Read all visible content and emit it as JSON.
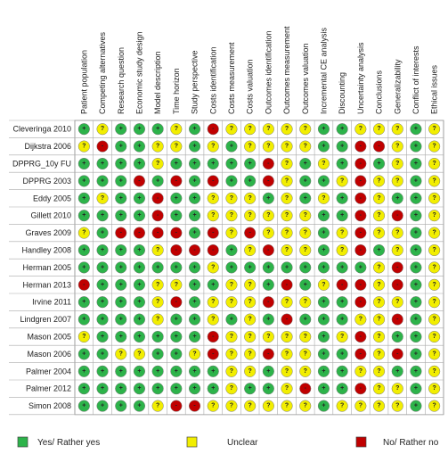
{
  "table": {
    "columns": [
      "Patient population",
      "Competing alternatives",
      "Research question",
      "Economic study design",
      "Model description",
      "Time horizon",
      "Study perspective",
      "Costs identification",
      "Costs measurement",
      "Costs valuation",
      "Outcomes identification",
      "Outcomes measurement",
      "Outcomes valuation",
      "Incremental CE analysis",
      "Discounting",
      "Uncertainty analysis",
      "Conclusions",
      "Generalizability",
      "Conflict of interests",
      "Ethical issues"
    ],
    "rows": [
      {
        "name": "Cleveringa 2010",
        "cells": [
          "+",
          "?",
          "+",
          "+",
          "+",
          "?",
          "+",
          "-",
          "?",
          "?",
          "?",
          "?",
          "?",
          "+",
          "+",
          "?",
          "?",
          "?",
          "+",
          "?"
        ]
      },
      {
        "name": "Dijkstra 2006",
        "cells": [
          "?",
          "-",
          "+",
          "+",
          "?",
          "?",
          "+",
          "?",
          "+",
          "?",
          "?",
          "?",
          "?",
          "+",
          "+",
          "-",
          "-",
          "?",
          "+",
          "?"
        ]
      },
      {
        "name": "DPPRG_10y FU",
        "cells": [
          "+",
          "+",
          "+",
          "+",
          "?",
          "+",
          "+",
          "+",
          "+",
          "+",
          "-",
          "?",
          "+",
          "?",
          "+",
          "-",
          "+",
          "?",
          "+",
          "?"
        ]
      },
      {
        "name": "DPPRG 2003",
        "cells": [
          "+",
          "+",
          "+",
          "-",
          "+",
          "-",
          "+",
          "-",
          "+",
          "+",
          "-",
          "?",
          "+",
          "+",
          "?",
          "-",
          "?",
          "?",
          "+",
          "?"
        ]
      },
      {
        "name": "Eddy 2005",
        "cells": [
          "+",
          "?",
          "+",
          "+",
          "-",
          "+",
          "+",
          "?",
          "?",
          "?",
          "+",
          "?",
          "+",
          "?",
          "+",
          "-",
          "?",
          "+",
          "+",
          "?"
        ]
      },
      {
        "name": "Gillett 2010",
        "cells": [
          "+",
          "+",
          "+",
          "+",
          "-",
          "+",
          "+",
          "?",
          "?",
          "?",
          "?",
          "?",
          "?",
          "+",
          "+",
          "-",
          "?",
          "-",
          "+",
          "?"
        ]
      },
      {
        "name": "Graves 2009",
        "cells": [
          "?",
          "+",
          "-",
          "-",
          "-",
          "-",
          "+",
          "-",
          "?",
          "-",
          "?",
          "?",
          "?",
          "+",
          "?",
          "-",
          "?",
          "?",
          "+",
          "?"
        ]
      },
      {
        "name": "Handley 2008",
        "cells": [
          "+",
          "+",
          "+",
          "+",
          "?",
          "-",
          "-",
          "-",
          "+",
          "?",
          "-",
          "?",
          "?",
          "+",
          "?",
          "-",
          "+",
          "?",
          "+",
          "?"
        ]
      },
      {
        "name": "Herman 2005",
        "cells": [
          "+",
          "+",
          "+",
          "+",
          "+",
          "+",
          "+",
          "?",
          "+",
          "+",
          "+",
          "+",
          "+",
          "+",
          "+",
          "+",
          "?",
          "-",
          "+",
          "?"
        ]
      },
      {
        "name": "Herman 2013",
        "cells": [
          "-",
          "+",
          "+",
          "+",
          "?",
          "?",
          "+",
          "+",
          "?",
          "?",
          "+",
          "-",
          "+",
          "?",
          "-",
          "-",
          "?",
          "-",
          "+",
          "?"
        ]
      },
      {
        "name": "Irvine 2011",
        "cells": [
          "+",
          "+",
          "+",
          "+",
          "?",
          "-",
          "+",
          "?",
          "?",
          "?",
          "-",
          "?",
          "?",
          "+",
          "+",
          "-",
          "?",
          "?",
          "+",
          "?"
        ]
      },
      {
        "name": "Lindgren 2007",
        "cells": [
          "+",
          "+",
          "+",
          "+",
          "?",
          "+",
          "+",
          "?",
          "+",
          "?",
          "+",
          "-",
          "+",
          "+",
          "+",
          "?",
          "?",
          "-",
          "+",
          "?"
        ]
      },
      {
        "name": "Mason 2005",
        "cells": [
          "?",
          "+",
          "+",
          "+",
          "+",
          "+",
          "+",
          "-",
          "?",
          "?",
          "?",
          "?",
          "?",
          "+",
          "?",
          "-",
          "?",
          "+",
          "+",
          "?"
        ]
      },
      {
        "name": "Mason 2006",
        "cells": [
          "+",
          "+",
          "?",
          "?",
          "+",
          "+",
          "?",
          "-",
          "?",
          "?",
          "-",
          "?",
          "?",
          "+",
          "+",
          "-",
          "?",
          "-",
          "+",
          "?"
        ]
      },
      {
        "name": "Palmer 2004",
        "cells": [
          "+",
          "+",
          "+",
          "+",
          "+",
          "+",
          "+",
          "+",
          "?",
          "?",
          "+",
          "?",
          "?",
          "+",
          "+",
          "?",
          "?",
          "+",
          "+",
          "?"
        ]
      },
      {
        "name": "Palmer 2012",
        "cells": [
          "+",
          "+",
          "+",
          "+",
          "+",
          "+",
          "+",
          "+",
          "?",
          "+",
          "+",
          "?",
          "-",
          "+",
          "+",
          "-",
          "?",
          "?",
          "+",
          "?"
        ]
      },
      {
        "name": "Simon 2008",
        "cells": [
          "+",
          "+",
          "+",
          "+",
          "?",
          "-",
          "-",
          "?",
          "?",
          "?",
          "?",
          "?",
          "?",
          "+",
          "?",
          "?",
          "?",
          "?",
          "+",
          "?"
        ]
      }
    ]
  },
  "legend": [
    {
      "code": "+",
      "label": "Yes/ Rather yes"
    },
    {
      "code": "?",
      "label": "Unclear"
    },
    {
      "code": "-",
      "label": "No/ Rather no"
    }
  ]
}
